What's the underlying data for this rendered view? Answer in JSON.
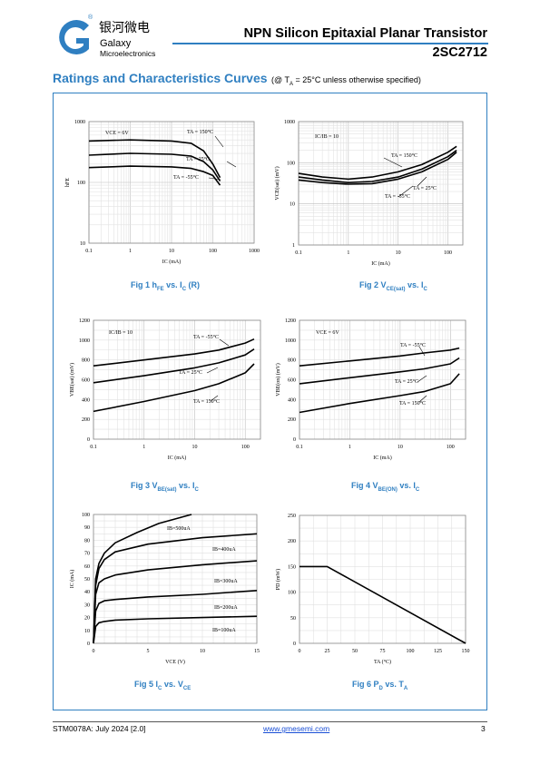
{
  "header": {
    "logo_cn": "银河微电",
    "logo_en1": "Galaxy",
    "logo_en2": "Microelectronics",
    "logo_reg": "®",
    "title": "NPN Silicon Epitaxial Planar Transistor",
    "part": "2SC2712",
    "accent": "#2f7fc1"
  },
  "section": {
    "title": "Ratings and Characteristics Curves",
    "note_pre": "(@ T",
    "note_sub": "A",
    "note_post": " = 25°C unless otherwise specified)"
  },
  "captions": {
    "fig1": {
      "pre": "Fig 1    h",
      "sub1": "FE",
      "mid": " vs. I",
      "sub2": "C",
      "post": " (R)"
    },
    "fig2": {
      "pre": "Fig 2    V",
      "sub1": "CE(sat)",
      "mid": " vs. I",
      "sub2": "C",
      "post": ""
    },
    "fig3": {
      "pre": "Fig 3    V",
      "sub1": "BE(sat)",
      "mid": " vs. I",
      "sub2": "C",
      "post": ""
    },
    "fig4": {
      "pre": "Fig 4    V",
      "sub1": "BE(ON)",
      "mid": " vs. I",
      "sub2": "C",
      "post": ""
    },
    "fig5": {
      "pre": "Fig 5    I",
      "sub1": "C",
      "mid": " vs. V",
      "sub2": "CE",
      "post": ""
    },
    "fig6": {
      "pre": "Fig 6    P",
      "sub1": "D",
      "mid": " vs. T",
      "sub2": "A",
      "post": ""
    }
  },
  "footer": {
    "doc": "STM0078A: July 2024 [2.0]",
    "url": "www.gmesemi.com",
    "page": "3"
  },
  "chart_data": [
    {
      "id": "fig1",
      "type": "line",
      "xscale": "log",
      "yscale": "log",
      "xlim": [
        0.1,
        1000
      ],
      "ylim": [
        10,
        1000
      ],
      "xticks": [
        "0.1",
        "1",
        "10",
        "100",
        "1000"
      ],
      "yticks": [
        "10",
        "100",
        "1000"
      ],
      "xlabel": "I_C (mA)",
      "ylabel": "h_FE",
      "annotations": [
        "V_CE = 6V",
        "T_A = 150°C",
        "T_A = 25°C",
        "T_A = -55°C"
      ],
      "series": [
        {
          "name": "T_A = 150°C",
          "x": [
            0.1,
            1,
            10,
            30,
            60,
            100,
            150
          ],
          "y": [
            480,
            500,
            480,
            440,
            330,
            200,
            120
          ]
        },
        {
          "name": "T_A = 25°C",
          "x": [
            0.1,
            1,
            10,
            30,
            60,
            100,
            150
          ],
          "y": [
            280,
            300,
            290,
            270,
            220,
            160,
            105
          ]
        },
        {
          "name": "T_A = -55°C",
          "x": [
            0.1,
            1,
            10,
            30,
            60,
            100,
            150
          ],
          "y": [
            175,
            185,
            180,
            170,
            150,
            130,
            90
          ]
        }
      ]
    },
    {
      "id": "fig2",
      "type": "line",
      "xscale": "log",
      "yscale": "log",
      "xlim": [
        0.1,
        200
      ],
      "ylim": [
        1,
        1000
      ],
      "xticks": [
        "0.1",
        "1",
        "10",
        "100"
      ],
      "yticks": [
        "1",
        "10",
        "100",
        "1000"
      ],
      "xlabel": "I_C (mA)",
      "ylabel": "V_CE(sat) (mV)",
      "annotations": [
        "I_C/I_B = 10",
        "T_A = 150°C",
        "T_A = 25°C",
        "T_A = -55°C"
      ],
      "series": [
        {
          "name": "T_A = 150°C",
          "x": [
            0.1,
            0.3,
            1,
            3,
            10,
            30,
            100,
            150
          ],
          "y": [
            55,
            45,
            40,
            45,
            60,
            90,
            180,
            250
          ]
        },
        {
          "name": "T_A = 25°C",
          "x": [
            0.1,
            0.3,
            1,
            3,
            10,
            30,
            100,
            150
          ],
          "y": [
            45,
            38,
            33,
            35,
            45,
            70,
            140,
            200
          ]
        },
        {
          "name": "T_A = -55°C",
          "x": [
            0.1,
            0.3,
            1,
            3,
            10,
            30,
            100,
            150
          ],
          "y": [
            38,
            33,
            30,
            31,
            40,
            60,
            120,
            180
          ]
        }
      ]
    },
    {
      "id": "fig3",
      "type": "line",
      "xscale": "log",
      "yscale": "linear",
      "xlim": [
        0.1,
        200
      ],
      "ylim": [
        0,
        1200
      ],
      "xticks": [
        "0.1",
        "1",
        "10",
        "100"
      ],
      "yticks": [
        "0",
        "200",
        "400",
        "600",
        "800",
        "1000",
        "1200"
      ],
      "xlabel": "I_C (mA)",
      "ylabel": "V_BE(sat) (mV)",
      "annotations": [
        "I_C/I_B = 10",
        "T_A = -55°C",
        "T_A = 25°C",
        "T_A = 150°C"
      ],
      "series": [
        {
          "name": "T_A = -55°C",
          "x": [
            0.1,
            1,
            10,
            30,
            100,
            150
          ],
          "y": [
            740,
            800,
            860,
            900,
            970,
            1010
          ]
        },
        {
          "name": "T_A = 25°C",
          "x": [
            0.1,
            1,
            10,
            30,
            100,
            150
          ],
          "y": [
            570,
            640,
            720,
            770,
            850,
            910
          ]
        },
        {
          "name": "T_A = 150°C",
          "x": [
            0.1,
            1,
            10,
            30,
            100,
            150
          ],
          "y": [
            280,
            380,
            490,
            560,
            670,
            760
          ]
        }
      ]
    },
    {
      "id": "fig4",
      "type": "line",
      "xscale": "log",
      "yscale": "linear",
      "xlim": [
        0.1,
        200
      ],
      "ylim": [
        0,
        1200
      ],
      "xticks": [
        "0.1",
        "1",
        "10",
        "100"
      ],
      "yticks": [
        "0",
        "200",
        "400",
        "600",
        "800",
        "1000",
        "1200"
      ],
      "xlabel": "I_C (mA)",
      "ylabel": "V_BE(on) (mV)",
      "annotations": [
        "V_CE = 6V",
        "T_A = -55°C",
        "T_A = 25°C",
        "T_A = 150°C"
      ],
      "series": [
        {
          "name": "T_A = -55°C",
          "x": [
            0.1,
            1,
            10,
            30,
            100,
            150
          ],
          "y": [
            740,
            790,
            840,
            870,
            900,
            920
          ]
        },
        {
          "name": "T_A = 25°C",
          "x": [
            0.1,
            1,
            10,
            30,
            100,
            150
          ],
          "y": [
            560,
            620,
            680,
            710,
            760,
            820
          ]
        },
        {
          "name": "T_A = 150°C",
          "x": [
            0.1,
            1,
            10,
            30,
            100,
            150
          ],
          "y": [
            270,
            360,
            440,
            480,
            560,
            660
          ]
        }
      ]
    },
    {
      "id": "fig5",
      "type": "line",
      "xscale": "linear",
      "yscale": "linear",
      "xlim": [
        0,
        15
      ],
      "ylim": [
        0,
        100
      ],
      "xticks": [
        "0",
        "5",
        "10",
        "15"
      ],
      "yticks": [
        "0",
        "10",
        "20",
        "30",
        "40",
        "50",
        "60",
        "70",
        "80",
        "90",
        "100"
      ],
      "xlabel": "V_CE (V)",
      "ylabel": "I_C (mA)",
      "annotations": [
        "I_B=500uA",
        "I_B=400uA",
        "I_B=300uA",
        "I_B=200uA",
        "I_B=100uA"
      ],
      "series": [
        {
          "name": "I_B=500uA",
          "x": [
            0,
            0.2,
            0.5,
            1,
            2,
            4,
            6,
            9
          ],
          "y": [
            0,
            50,
            62,
            70,
            78,
            86,
            93,
            100
          ]
        },
        {
          "name": "I_B=400uA",
          "x": [
            0,
            0.2,
            0.5,
            1,
            2,
            5,
            10,
            15
          ],
          "y": [
            0,
            45,
            58,
            65,
            71,
            77,
            82,
            85
          ]
        },
        {
          "name": "I_B=300uA",
          "x": [
            0,
            0.2,
            0.5,
            1,
            2,
            5,
            10,
            15
          ],
          "y": [
            0,
            38,
            47,
            50,
            53,
            57,
            61,
            64
          ]
        },
        {
          "name": "I_B=200uA",
          "x": [
            0,
            0.2,
            0.5,
            1,
            2,
            5,
            10,
            15
          ],
          "y": [
            0,
            25,
            31,
            33,
            34,
            36,
            38,
            41
          ]
        },
        {
          "name": "I_B=100uA",
          "x": [
            0,
            0.2,
            0.5,
            1,
            2,
            5,
            10,
            15
          ],
          "y": [
            0,
            13,
            16,
            17,
            18,
            19,
            20,
            21
          ]
        }
      ]
    },
    {
      "id": "fig6",
      "type": "line",
      "xscale": "linear",
      "yscale": "linear",
      "xlim": [
        0,
        150
      ],
      "ylim": [
        0,
        250
      ],
      "xticks": [
        "0",
        "25",
        "50",
        "75",
        "100",
        "125",
        "150"
      ],
      "yticks": [
        "0",
        "50",
        "100",
        "150",
        "200",
        "250"
      ],
      "xlabel": "T_A (°C)",
      "ylabel": "P_D (mW)",
      "series": [
        {
          "name": "P_D",
          "x": [
            0,
            25,
            150
          ],
          "y": [
            150,
            150,
            0
          ]
        }
      ]
    }
  ]
}
